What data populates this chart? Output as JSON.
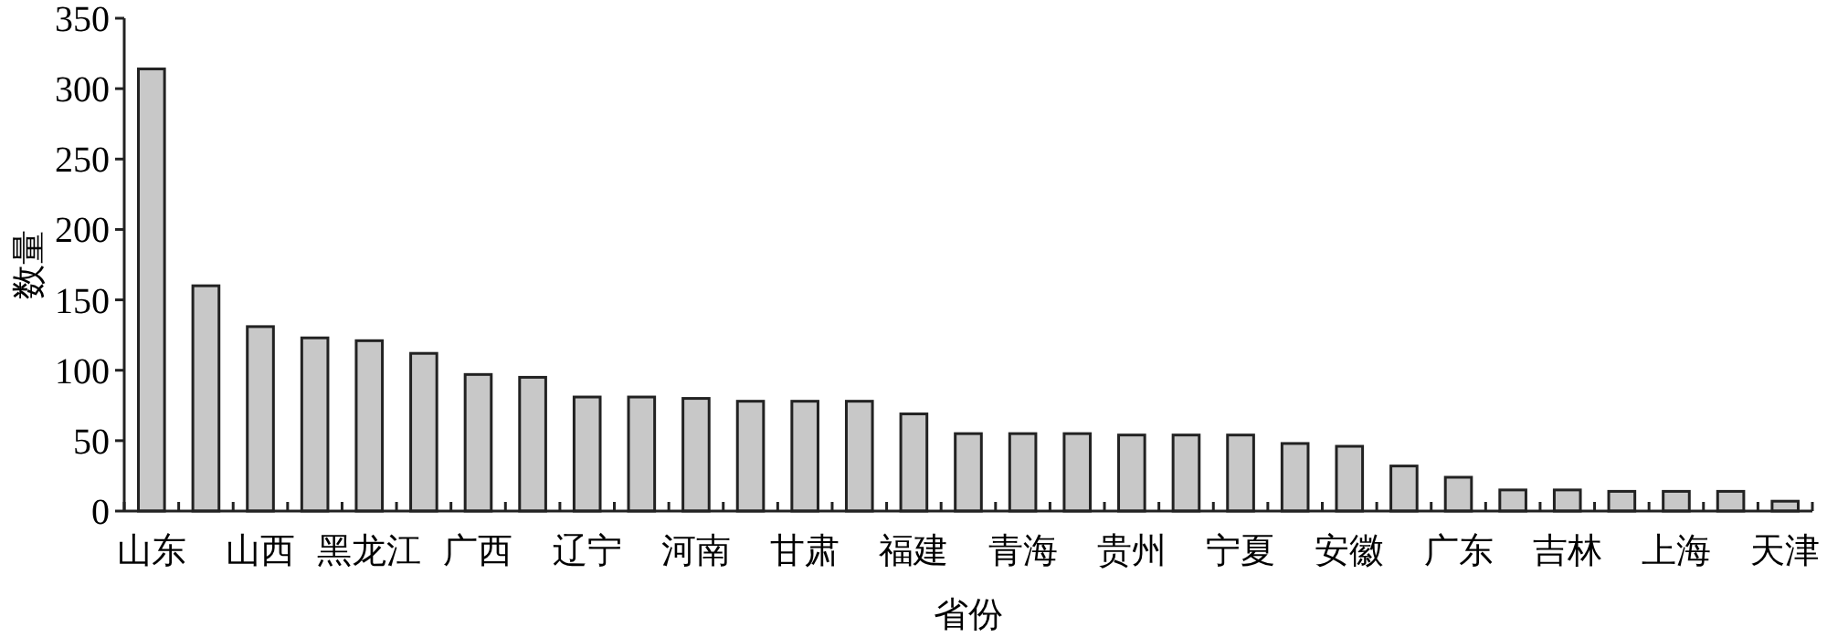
{
  "chart_data": {
    "type": "bar",
    "xlabel": "省份",
    "ylabel": "数量",
    "categories": [
      "山东",
      null,
      "山西",
      null,
      "黑龙江",
      null,
      "广西",
      null,
      "辽宁",
      null,
      "河南",
      null,
      "甘肃",
      null,
      "福建",
      null,
      "青海",
      null,
      "贵州",
      null,
      "宁夏",
      null,
      "安徽",
      null,
      "广东",
      null,
      "吉林",
      null,
      "上海",
      null,
      "天津"
    ],
    "values": [
      314,
      160,
      131,
      123,
      121,
      112,
      97,
      95,
      81,
      81,
      80,
      78,
      78,
      78,
      69,
      55,
      55,
      55,
      54,
      54,
      54,
      48,
      46,
      32,
      24,
      15,
      15,
      14,
      14,
      14,
      7
    ],
    "color": "#c8c8c8",
    "ylim": [
      0,
      350
    ],
    "yticks": [
      0,
      50,
      100,
      150,
      200,
      250,
      300,
      350
    ],
    "grid": false
  }
}
